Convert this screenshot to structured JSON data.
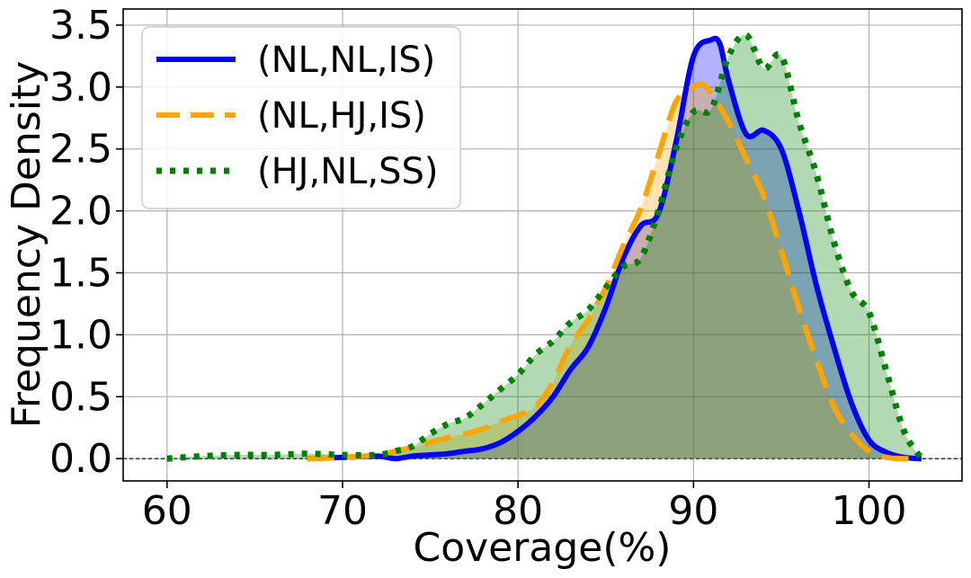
{
  "chart_data": {
    "type": "area",
    "title": "",
    "xlabel": "Coverage(%)",
    "ylabel": "Frequency Density",
    "xlim": [
      57.5,
      105.3
    ],
    "ylim": [
      -0.18,
      3.63
    ],
    "xticks": [
      60,
      70,
      80,
      90,
      100
    ],
    "xtick_labels": [
      "60",
      "70",
      "80",
      "90",
      "100"
    ],
    "yticks": [
      0.0,
      0.5,
      1.0,
      1.5,
      2.0,
      2.5,
      3.0,
      3.5
    ],
    "ytick_labels": [
      "0.0",
      "0.5",
      "1.0",
      "1.5",
      "2.0",
      "2.5",
      "3.0",
      "3.5"
    ],
    "grid": true,
    "legend_position": "top-left",
    "baseline": 0.0,
    "series": [
      {
        "name": "(NL,NL,IS)",
        "color": "#0000ff",
        "fill_color": "#0000ff",
        "line_style": "solid",
        "x": [
          68,
          70,
          72,
          73,
          74,
          75,
          76,
          77,
          78,
          79,
          80,
          81,
          82,
          83,
          84,
          85,
          86,
          87,
          88,
          89,
          90,
          91,
          91.5,
          92,
          93,
          94,
          95,
          96,
          97,
          98,
          99,
          100,
          101,
          102,
          103
        ],
        "y": [
          0.0,
          0.01,
          0.02,
          0.0,
          0.02,
          0.03,
          0.04,
          0.06,
          0.08,
          0.13,
          0.22,
          0.34,
          0.5,
          0.72,
          0.9,
          1.22,
          1.62,
          1.88,
          1.98,
          2.55,
          3.25,
          3.38,
          3.35,
          3.05,
          2.62,
          2.65,
          2.5,
          2.0,
          1.4,
          0.9,
          0.45,
          0.15,
          0.05,
          0.01,
          0.0
        ]
      },
      {
        "name": "(NL,HJ,IS)",
        "color": "#ffa500",
        "fill_color": "#ffa500",
        "line_style": "dashed",
        "x": [
          68,
          70,
          72,
          73,
          74,
          75,
          76,
          77,
          78,
          79,
          80,
          81,
          82,
          83,
          84,
          85,
          86,
          87,
          88,
          89,
          90,
          90.5,
          91,
          92,
          93,
          94,
          95,
          96,
          97,
          98,
          99,
          100,
          101,
          102,
          103
        ],
        "y": [
          0.0,
          0.01,
          0.03,
          0.06,
          0.09,
          0.13,
          0.17,
          0.2,
          0.24,
          0.3,
          0.35,
          0.42,
          0.62,
          0.92,
          1.12,
          1.38,
          1.72,
          2.02,
          2.45,
          2.88,
          3.0,
          3.02,
          2.95,
          2.72,
          2.42,
          2.12,
          1.68,
          1.22,
          0.8,
          0.42,
          0.2,
          0.06,
          0.01,
          0.0,
          0.0
        ]
      },
      {
        "name": "(HJ,NL,SS)",
        "color": "#008000",
        "fill_color": "#008000",
        "line_style": "dotted",
        "x": [
          60,
          62,
          64,
          66,
          68,
          70,
          72,
          73,
          74,
          75,
          76,
          77,
          78,
          79,
          80,
          81,
          82,
          83,
          84,
          85,
          86,
          87,
          88,
          89,
          90,
          91,
          92,
          93,
          94,
          95,
          96,
          97,
          98,
          99,
          100,
          101,
          102,
          103
        ],
        "y": [
          0.0,
          0.02,
          0.03,
          0.03,
          0.04,
          0.03,
          0.03,
          0.06,
          0.1,
          0.2,
          0.28,
          0.33,
          0.44,
          0.56,
          0.68,
          0.84,
          0.95,
          1.1,
          1.2,
          1.38,
          1.55,
          1.62,
          2.0,
          2.5,
          2.8,
          2.82,
          3.25,
          3.42,
          3.15,
          3.25,
          2.72,
          2.3,
          1.75,
          1.35,
          1.18,
          0.7,
          0.22,
          0.0
        ]
      }
    ]
  }
}
